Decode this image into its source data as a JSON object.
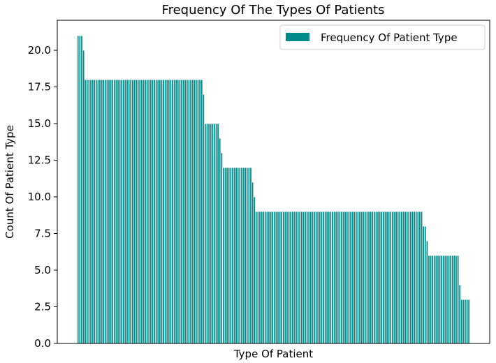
{
  "chart_data": {
    "type": "bar",
    "title": "Frequency Of The Types Of Patients",
    "xlabel": "Type Of Patient",
    "ylabel": "Count Of Patient Type",
    "ylim": [
      0,
      22.05
    ],
    "yticks": [
      0.0,
      2.5,
      5.0,
      7.5,
      10.0,
      12.5,
      15.0,
      17.5,
      20.0
    ],
    "ytick_labels": [
      "0.0",
      "2.5",
      "5.0",
      "7.5",
      "10.0",
      "12.5",
      "15.0",
      "17.5",
      "20.0"
    ],
    "xticks_visible": false,
    "grid": false,
    "legend_position": "top-right",
    "bar_color": "#008b8b",
    "series": [
      {
        "name": "Frequency Of Patient Type",
        "values": [
          21,
          21,
          21,
          20,
          18,
          18,
          18,
          18,
          18,
          18,
          18,
          18,
          18,
          18,
          18,
          18,
          18,
          18,
          18,
          18,
          18,
          18,
          18,
          18,
          18,
          18,
          18,
          18,
          18,
          18,
          18,
          18,
          18,
          18,
          18,
          18,
          18,
          18,
          18,
          18,
          18,
          18,
          18,
          18,
          18,
          18,
          18,
          18,
          18,
          18,
          18,
          18,
          18,
          18,
          18,
          18,
          18,
          18,
          18,
          18,
          18,
          18,
          18,
          18,
          18,
          18,
          18,
          18,
          18,
          17,
          15,
          15,
          15,
          15,
          15,
          15,
          15,
          15,
          14,
          13,
          12,
          12,
          12,
          12,
          12,
          12,
          12,
          12,
          12,
          12,
          12,
          12,
          12,
          12,
          12,
          12,
          11,
          10,
          9,
          9,
          9,
          9,
          9,
          9,
          9,
          9,
          9,
          9,
          9,
          9,
          9,
          9,
          9,
          9,
          9,
          9,
          9,
          9,
          9,
          9,
          9,
          9,
          9,
          9,
          9,
          9,
          9,
          9,
          9,
          9,
          9,
          9,
          9,
          9,
          9,
          9,
          9,
          9,
          9,
          9,
          9,
          9,
          9,
          9,
          9,
          9,
          9,
          9,
          9,
          9,
          9,
          9,
          9,
          9,
          9,
          9,
          9,
          9,
          9,
          9,
          9,
          9,
          9,
          9,
          9,
          9,
          9,
          9,
          9,
          9,
          9,
          9,
          9,
          9,
          9,
          9,
          9,
          9,
          9,
          9,
          9,
          9,
          9,
          9,
          9,
          9,
          9,
          9,
          9,
          9,
          8,
          8,
          7,
          6,
          6,
          6,
          6,
          6,
          6,
          6,
          6,
          6,
          6,
          6,
          6,
          6,
          6,
          6,
          6,
          6,
          4,
          3,
          3,
          3,
          3,
          3
        ]
      }
    ]
  }
}
